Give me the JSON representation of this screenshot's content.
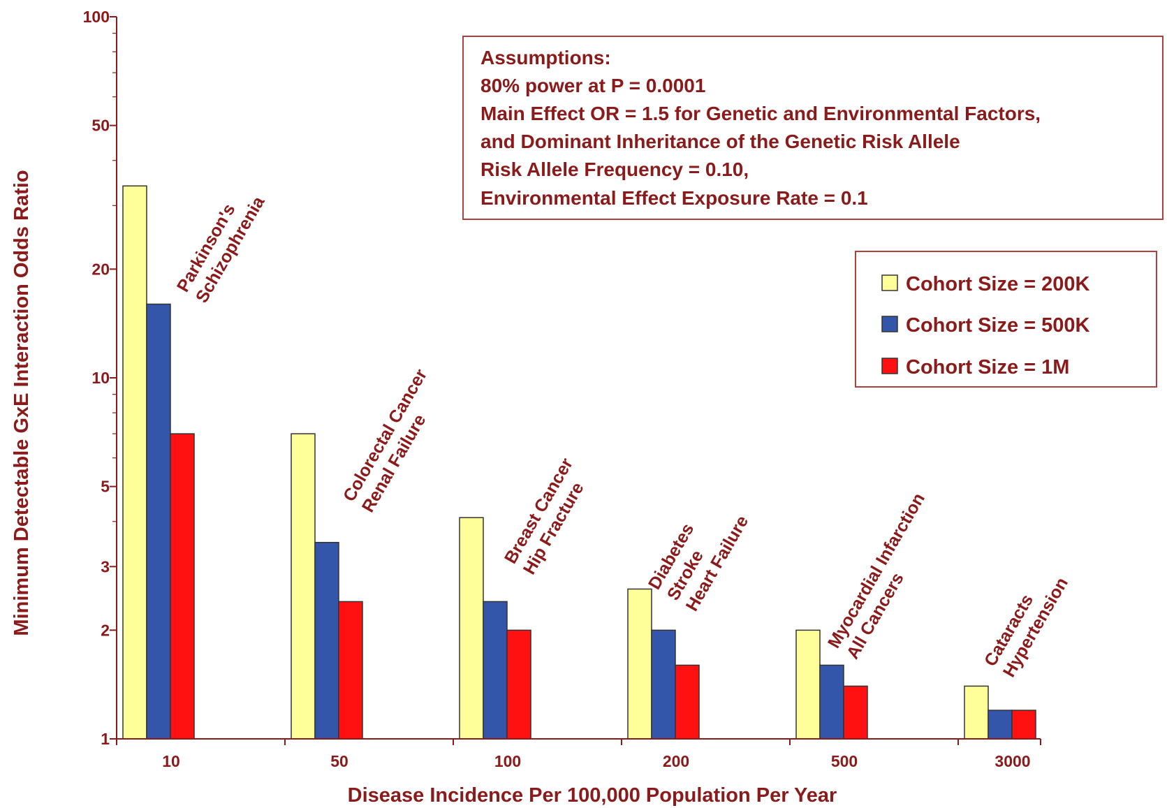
{
  "chart_data": {
    "type": "bar",
    "ylabel": "Minimum Detectable GxE Interaction Odds Ratio",
    "xlabel": "Disease Incidence Per 100,000 Population Per Year",
    "yscale": "log",
    "ylim": [
      1,
      100
    ],
    "yticks": [
      1,
      2,
      3,
      5,
      10,
      20,
      50,
      100
    ],
    "ytick_labels": [
      "1",
      "2",
      "3",
      "5",
      "10",
      "20",
      "50",
      "100"
    ],
    "categories": [
      "10",
      "50",
      "100",
      "200",
      "500",
      "3000"
    ],
    "series": [
      {
        "name": "Cohort Size = 200K",
        "color": "#ffff99",
        "values": [
          34,
          7,
          4.1,
          2.6,
          2.0,
          1.4
        ]
      },
      {
        "name": "Cohort Size = 500K",
        "color": "#3355aa",
        "values": [
          16,
          3.5,
          2.4,
          2.0,
          1.6,
          1.2
        ]
      },
      {
        "name": "Cohort Size = 1M",
        "color": "#ff1111",
        "values": [
          7,
          2.4,
          2.0,
          1.6,
          1.4,
          1.2
        ]
      }
    ],
    "group_annotations": [
      [
        "Parkinson's",
        "Schizophrenia"
      ],
      [
        "Colorectal Cancer",
        "Renal Failure"
      ],
      [
        "Breast Cancer",
        "Hip Fracture"
      ],
      [
        "Diabetes",
        "Stroke",
        "Heart Failure"
      ],
      [
        "Myocardial Infarction",
        "All Cancers"
      ],
      [
        "Cataracts",
        "Hypertension"
      ]
    ],
    "assumptions": [
      "Assumptions:",
      "80% power at P = 0.0001",
      "Main Effect OR = 1.5 for Genetic and Environmental Factors,",
      "and Dominant Inheritance of the Genetic Risk Allele",
      "Risk Allele Frequency = 0.10,",
      "Environmental Effect Exposure Rate = 0.1"
    ],
    "legend_position": "right",
    "grid": false,
    "text_color": "#8b1a1a",
    "axis_color": "#8b1a1a"
  }
}
